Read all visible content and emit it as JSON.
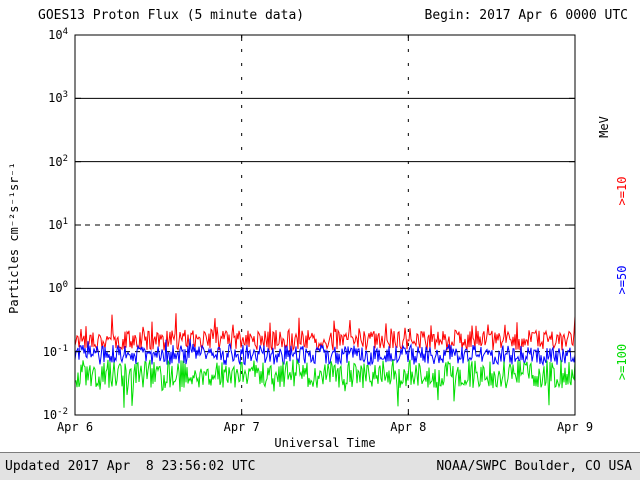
{
  "header": {
    "title": "GOES13 Proton Flux (5 minute data)",
    "begin_label": "Begin: 2017 Apr 6 0000 UTC"
  },
  "footer": {
    "updated": "Updated 2017 Apr  8 23:56:02 UTC",
    "source": "NOAA/SWPC Boulder, CO USA"
  },
  "chart_data": {
    "type": "line",
    "title": "GOES13 Proton Flux (5 minute data)",
    "xlabel": "Universal Time",
    "ylabel": "Particles cm⁻²s⁻¹sr⁻¹",
    "right_axis_label": "MeV",
    "x_ticks": [
      "Apr 6",
      "Apr 7",
      "Apr 8",
      "Apr 9"
    ],
    "y_exponents": [
      4,
      3,
      2,
      1,
      0,
      -1,
      -2
    ],
    "ylim_log10": [
      -2,
      4
    ],
    "grid": {
      "solid_exponents": [
        3,
        2,
        0
      ],
      "dashed_exponents": [
        1,
        -1
      ]
    },
    "sample_interval_minutes": 5,
    "x_span_days": 3,
    "series": [
      {
        "name": ">=10",
        "color": "#ff0000",
        "approx_flux_range": [
          0.09,
          0.35
        ],
        "base_log10": -0.82,
        "spread": 0.32,
        "spike_prob": 0.1,
        "spike_max": 0.3,
        "spike_dir": 1,
        "seed": 17
      },
      {
        "name": ">=50",
        "color": "#0000ff",
        "approx_flux_range": [
          0.05,
          0.17
        ],
        "base_log10": -1.05,
        "spread": 0.32,
        "spike_prob": 0.05,
        "spike_max": 0.2,
        "spike_dir": 1,
        "seed": 29
      },
      {
        "name": ">=100",
        "color": "#00dd00",
        "approx_flux_range": [
          0.015,
          0.1
        ],
        "base_log10": -1.35,
        "spread": 0.46,
        "spike_prob": 0.08,
        "spike_max": 0.4,
        "spike_dir": -1,
        "seed": 43
      }
    ]
  }
}
